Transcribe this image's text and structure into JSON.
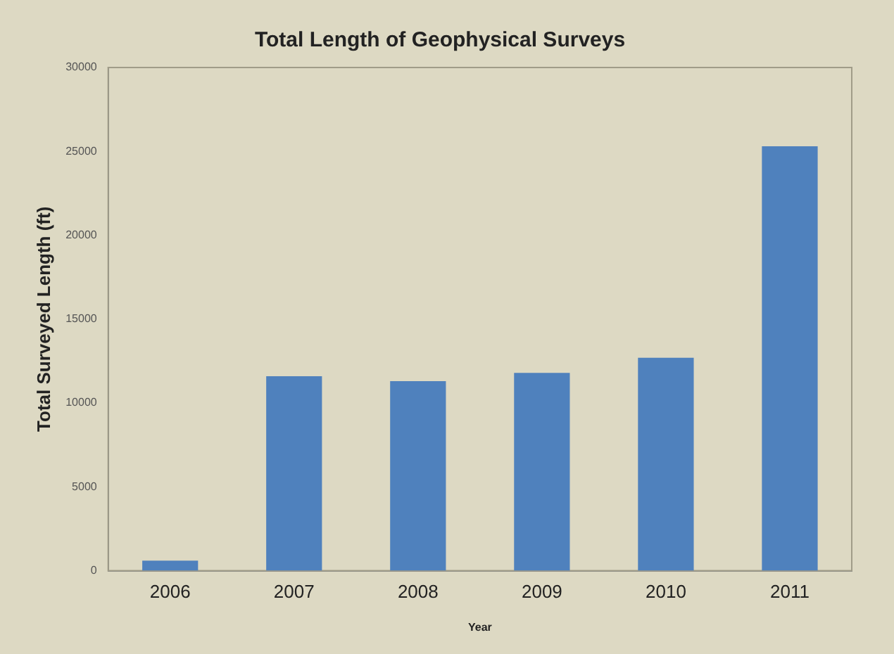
{
  "chart_data": {
    "type": "bar",
    "title": "Total Length of Geophysical Surveys",
    "xlabel": "Year",
    "ylabel": "Total Surveyed Length (ft)",
    "categories": [
      "2006",
      "2007",
      "2008",
      "2009",
      "2010",
      "2011"
    ],
    "values": [
      600,
      11600,
      11300,
      11800,
      12700,
      25300
    ],
    "color": "#4f81bd",
    "ylim": [
      0,
      30000
    ],
    "yticks": [
      0,
      5000,
      10000,
      15000,
      20000,
      25000,
      30000
    ],
    "grid": false,
    "legend": false
  }
}
